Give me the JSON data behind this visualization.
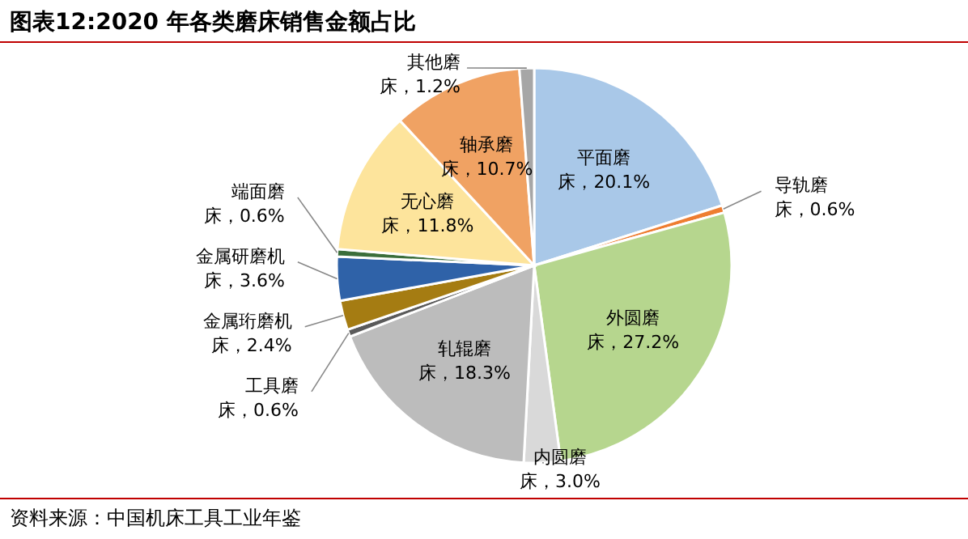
{
  "chart_data": {
    "type": "pie",
    "title": "图表12:2020 年各类磨床销售金额占比",
    "categories": [
      "平面磨床",
      "导轨磨床",
      "外圆磨床",
      "内圆磨床",
      "轧辊磨床",
      "工具磨床",
      "金属珩磨机床",
      "金属研磨机床",
      "端面磨床",
      "无心磨床",
      "轴承磨床",
      "其他磨床"
    ],
    "legend": false,
    "values": [
      20.1,
      0.6,
      27.2,
      3.0,
      18.3,
      0.6,
      2.4,
      3.6,
      0.6,
      11.8,
      10.7,
      1.2
    ],
    "value_labels": [
      "20.1%",
      "0.6%",
      "27.2%",
      "3.0%",
      "18.3%",
      "0.6%",
      "2.4%",
      "3.6%",
      "0.6%",
      "11.8%",
      "10.7%",
      "1.2%"
    ],
    "colors": [
      "#a9c8e8",
      "#ee7d31",
      "#b6d68e",
      "#d9d9d9",
      "#bcbcbc",
      "#5a5a5a",
      "#a57c12",
      "#2f62a8",
      "#3b6e3b",
      "#fde49c",
      "#f0a263",
      "#a6a6a6"
    ],
    "annotations": [
      "资料来源：中国机床工具工业年鉴"
    ]
  }
}
